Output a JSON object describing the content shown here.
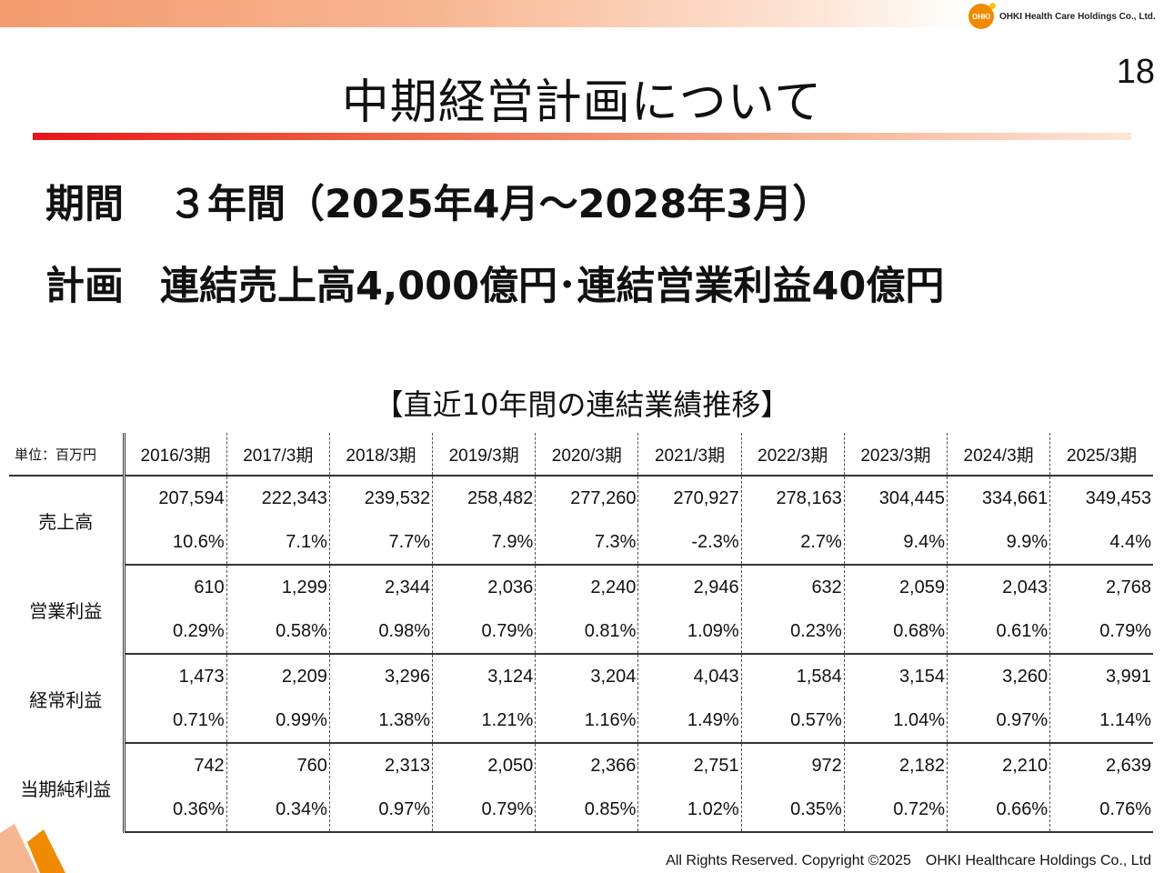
{
  "header": {
    "logo_mark": "OHKI",
    "company": "OHKI Health Care Holdings Co., Ltd.",
    "page_number": "18",
    "title": "中期経営計画について"
  },
  "headlines": [
    {
      "label": "期間",
      "text": "３年間（2025年4月～2028年3月）"
    },
    {
      "label": "計画",
      "text": "連結売上高4,000億円･連結営業利益40億円"
    }
  ],
  "table": {
    "subtitle": "【直近10年間の連結業績推移】",
    "unit_label": "単位：百万円",
    "years": [
      "2016/3期",
      "2017/3期",
      "2018/3期",
      "2019/3期",
      "2020/3期",
      "2021/3期",
      "2022/3期",
      "2023/3期",
      "2024/3期",
      "2025/3期"
    ],
    "rows": [
      {
        "label": "売上高",
        "values": [
          "207,594",
          "222,343",
          "239,532",
          "258,482",
          "277,260",
          "270,927",
          "278,163",
          "304,445",
          "334,661",
          "349,453"
        ],
        "percents": [
          "10.6%",
          "7.1%",
          "7.7%",
          "7.9%",
          "7.3%",
          "-2.3%",
          "2.7%",
          "9.4%",
          "9.9%",
          "4.4%"
        ]
      },
      {
        "label": "営業利益",
        "values": [
          "610",
          "1,299",
          "2,344",
          "2,036",
          "2,240",
          "2,946",
          "632",
          "2,059",
          "2,043",
          "2,768"
        ],
        "percents": [
          "0.29%",
          "0.58%",
          "0.98%",
          "0.79%",
          "0.81%",
          "1.09%",
          "0.23%",
          "0.68%",
          "0.61%",
          "0.79%"
        ]
      },
      {
        "label": "経常利益",
        "values": [
          "1,473",
          "2,209",
          "3,296",
          "3,124",
          "3,204",
          "4,043",
          "1,584",
          "3,154",
          "3,260",
          "3,991"
        ],
        "percents": [
          "0.71%",
          "0.99%",
          "1.38%",
          "1.21%",
          "1.16%",
          "1.49%",
          "0.57%",
          "1.04%",
          "0.97%",
          "1.14%"
        ]
      },
      {
        "label": "当期純利益",
        "values": [
          "742",
          "760",
          "2,313",
          "2,050",
          "2,366",
          "2,751",
          "972",
          "2,182",
          "2,210",
          "2,639"
        ],
        "percents": [
          "0.36%",
          "0.34%",
          "0.97%",
          "0.79%",
          "0.85%",
          "1.02%",
          "0.35%",
          "0.72%",
          "0.66%",
          "0.76%"
        ]
      }
    ]
  },
  "footer": {
    "copyright": "All Rights Reserved. Copyright ©2025　OHKI Healthcare Holdings Co., Ltd"
  },
  "colors": {
    "accent_red": "#e8141a",
    "accent_orange": "#f08a00",
    "band_peach": "#f7b692"
  }
}
